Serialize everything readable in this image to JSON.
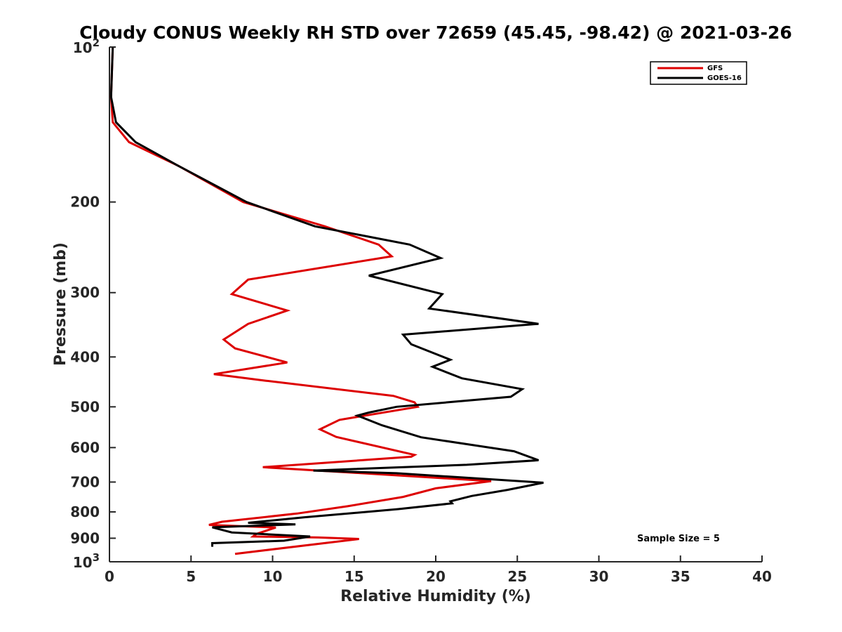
{
  "chart_data": {
    "type": "line",
    "title": "Cloudy CONUS Weekly RH STD over 72659 (45.45, -98.42) @ 2021-03-26",
    "xlabel": "Relative Humidity (%)",
    "ylabel": "Pressure (mb)",
    "xlim": [
      0,
      40
    ],
    "ylim": [
      100,
      1000
    ],
    "y_scale": "log",
    "y_reversed": true,
    "x_ticks": [
      0,
      5,
      10,
      15,
      20,
      25,
      30,
      35,
      40
    ],
    "y_ticks": [
      {
        "value": 100,
        "base": "10",
        "exp": "2"
      },
      {
        "value": 200,
        "label": "200"
      },
      {
        "value": 300,
        "label": "300"
      },
      {
        "value": 400,
        "label": "400"
      },
      {
        "value": 500,
        "label": "500"
      },
      {
        "value": 600,
        "label": "600"
      },
      {
        "value": 700,
        "label": "700"
      },
      {
        "value": 800,
        "label": "800"
      },
      {
        "value": 900,
        "label": "900"
      },
      {
        "value": 1000,
        "base": "10",
        "exp": "3"
      }
    ],
    "grid": false,
    "legend_position": "top-right",
    "annotation": "Sample Size = 5",
    "series": [
      {
        "name": "GFS",
        "color": "#dd0000",
        "points": [
          [
            0.2,
            100
          ],
          [
            0.1,
            125
          ],
          [
            0.2,
            140
          ],
          [
            1.2,
            153
          ],
          [
            4.2,
            170
          ],
          [
            8.2,
            200
          ],
          [
            13.2,
            223
          ],
          [
            16.5,
            242
          ],
          [
            17.3,
            255
          ],
          [
            8.5,
            283
          ],
          [
            7.5,
            302
          ],
          [
            10.9,
            325
          ],
          [
            8.5,
            345
          ],
          [
            7.0,
            370
          ],
          [
            7.7,
            385
          ],
          [
            10.9,
            410
          ],
          [
            6.4,
            432
          ],
          [
            9.6,
            445
          ],
          [
            17.4,
            476
          ],
          [
            18.7,
            490
          ],
          [
            18.9,
            500
          ],
          [
            14.1,
            530
          ],
          [
            12.9,
            553
          ],
          [
            13.9,
            572
          ],
          [
            18.7,
            620
          ],
          [
            18.5,
            625
          ],
          [
            9.4,
            655
          ],
          [
            23.4,
            697
          ],
          [
            20.0,
            720
          ],
          [
            18.0,
            748
          ],
          [
            14.6,
            780
          ],
          [
            11.5,
            806
          ],
          [
            6.9,
            836
          ],
          [
            6.1,
            848
          ],
          [
            10.2,
            858
          ],
          [
            9.0,
            883
          ],
          [
            8.8,
            893
          ],
          [
            12.8,
            897
          ],
          [
            15.3,
            903
          ],
          [
            7.7,
            965
          ]
        ]
      },
      {
        "name": "GOES-16",
        "color": "#000000",
        "points": [
          [
            0.2,
            100
          ],
          [
            0.1,
            125
          ],
          [
            0.4,
            140
          ],
          [
            1.6,
            153
          ],
          [
            4.2,
            170
          ],
          [
            8.4,
            200
          ],
          [
            12.6,
            223
          ],
          [
            18.4,
            242
          ],
          [
            20.3,
            257
          ],
          [
            15.9,
            278
          ],
          [
            20.4,
            302
          ],
          [
            19.6,
            322
          ],
          [
            26.3,
            345
          ],
          [
            18.0,
            362
          ],
          [
            18.5,
            378
          ],
          [
            20.9,
            405
          ],
          [
            19.8,
            418
          ],
          [
            21.6,
            440
          ],
          [
            25.3,
            462
          ],
          [
            24.6,
            478
          ],
          [
            17.6,
            500
          ],
          [
            15.9,
            513
          ],
          [
            15.2,
            520
          ],
          [
            16.7,
            543
          ],
          [
            19.1,
            573
          ],
          [
            24.8,
            610
          ],
          [
            26.3,
            635
          ],
          [
            21.9,
            648
          ],
          [
            12.5,
            665
          ],
          [
            17.6,
            673
          ],
          [
            26.6,
            702
          ],
          [
            24.4,
            725
          ],
          [
            22.2,
            745
          ],
          [
            20.9,
            763
          ],
          [
            21.0,
            770
          ],
          [
            17.7,
            790
          ],
          [
            11.9,
            820
          ],
          [
            8.5,
            840
          ],
          [
            11.4,
            846
          ],
          [
            6.3,
            857
          ],
          [
            7.5,
            877
          ],
          [
            12.3,
            893
          ],
          [
            10.7,
            910
          ],
          [
            6.3,
            920
          ],
          [
            6.3,
            935
          ]
        ]
      }
    ]
  }
}
